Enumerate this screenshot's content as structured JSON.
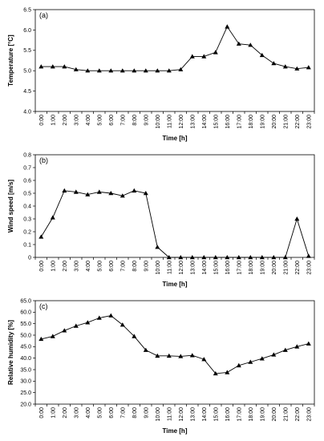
{
  "x_ticks": [
    "0:00",
    "1:00",
    "2:00",
    "3:00",
    "4:00",
    "5:00",
    "6:00",
    "7:00",
    "8:00",
    "9:00",
    "10:00",
    "11:00",
    "12:00",
    "13:00",
    "14:00",
    "15:00",
    "16:00",
    "17:00",
    "18:00",
    "19:00",
    "20:00",
    "21:00",
    "22:00",
    "23:00"
  ],
  "chart_data": [
    {
      "type": "line",
      "panel_label": "(a)",
      "xlabel": "Time [h]",
      "ylabel": "Temperature [°C]",
      "ylim": [
        4.0,
        6.5
      ],
      "y_ticks": [
        "4.0",
        "4.5",
        "5.0",
        "5.5",
        "6.0",
        "6.5"
      ],
      "y_tick_values": [
        4.0,
        4.5,
        5.0,
        5.5,
        6.0,
        6.5
      ],
      "values": [
        5.1,
        5.1,
        5.1,
        5.03,
        5.0,
        5.0,
        5.0,
        5.0,
        5.0,
        5.0,
        5.0,
        5.0,
        5.03,
        5.35,
        5.35,
        5.45,
        6.08,
        5.66,
        5.63,
        5.38,
        5.18,
        5.1,
        5.05,
        5.08
      ],
      "marker": "triangle",
      "grid": false
    },
    {
      "type": "line",
      "panel_label": "(b)",
      "xlabel": "Time [h]",
      "ylabel": "Wind speed [m/s]",
      "ylim": [
        0,
        0.8
      ],
      "y_ticks": [
        "0",
        "0.1",
        "0.2",
        "0.3",
        "0.4",
        "0.5",
        "0.6",
        "0.7",
        "0.8"
      ],
      "y_tick_values": [
        0,
        0.1,
        0.2,
        0.3,
        0.4,
        0.5,
        0.6,
        0.7,
        0.8
      ],
      "values": [
        0.16,
        0.31,
        0.52,
        0.51,
        0.49,
        0.51,
        0.5,
        0.48,
        0.52,
        0.5,
        0.08,
        0.0,
        0.0,
        0.0,
        0.0,
        0.0,
        0.0,
        0.0,
        0.0,
        0.0,
        0.0,
        0.0,
        0.3,
        0.01
      ],
      "marker": "triangle",
      "grid": false
    },
    {
      "type": "line",
      "panel_label": "(c)",
      "xlabel": "Time [h]",
      "ylabel": "Relative humidity [%]",
      "ylim": [
        20.0,
        65.0
      ],
      "y_ticks": [
        "20.0",
        "25.0",
        "30.0",
        "35.0",
        "40.0",
        "45.0",
        "50.0",
        "55.0",
        "60.0",
        "65.0"
      ],
      "y_tick_values": [
        20,
        25,
        30,
        35,
        40,
        45,
        50,
        55,
        60,
        65
      ],
      "values": [
        48.3,
        49.5,
        52.0,
        54.0,
        55.5,
        57.5,
        58.5,
        54.5,
        49.5,
        43.5,
        41.0,
        41.0,
        40.8,
        41.2,
        39.5,
        33.3,
        33.8,
        36.8,
        38.3,
        39.8,
        41.5,
        43.5,
        45.0,
        46.3
      ],
      "marker": "triangle",
      "grid": false
    }
  ]
}
